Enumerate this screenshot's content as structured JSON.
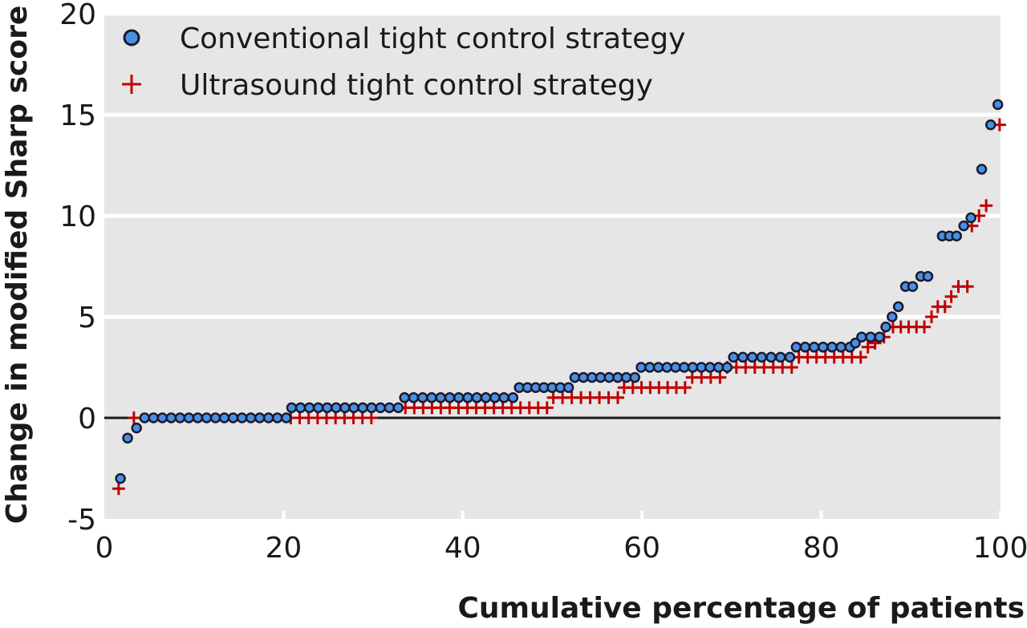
{
  "chart_data": {
    "type": "scatter",
    "title": "",
    "xlabel": "Cumulative percentage of patients",
    "ylabel": "Change in  modified Sharp score",
    "xlim": [
      0,
      100
    ],
    "ylim": [
      -5,
      20
    ],
    "x_ticks": [
      "0",
      "20",
      "40",
      "60",
      "80",
      "100"
    ],
    "y_ticks": [
      "-5",
      "0",
      "5",
      "10",
      "15",
      "20"
    ],
    "grid": true,
    "legend_position": "top-left",
    "colors": {
      "background": "#e6e6e6",
      "gridline": "#ffffff",
      "zero_line": "#1a1a1a",
      "conventional_fill": "#4a90e2",
      "conventional_edge": "#1a1a2e",
      "ultrasound": "#c00000"
    },
    "series": [
      {
        "name": "Conventional tight control strategy",
        "marker": "circle",
        "steps": [
          {
            "x0": 1.8,
            "x1": 1.8,
            "y": -3
          },
          {
            "x0": 2.6,
            "x1": 2.6,
            "y": -1
          },
          {
            "x0": 3.6,
            "x1": 3.6,
            "y": -0.5
          },
          {
            "x0": 4.5,
            "x1": 20.3,
            "y": 0
          },
          {
            "x0": 20.9,
            "x1": 32.8,
            "y": 0.5
          },
          {
            "x0": 33.5,
            "x1": 45.6,
            "y": 1
          },
          {
            "x0": 46.3,
            "x1": 51.8,
            "y": 1.5
          },
          {
            "x0": 52.5,
            "x1": 59.2,
            "y": 2
          },
          {
            "x0": 59.9,
            "x1": 69.5,
            "y": 2.5
          },
          {
            "x0": 70.2,
            "x1": 76.5,
            "y": 3
          },
          {
            "x0": 77.2,
            "x1": 83.2,
            "y": 3.5
          },
          {
            "x0": 83.8,
            "x1": 83.8,
            "y": 3.7
          },
          {
            "x0": 84.5,
            "x1": 86.5,
            "y": 4
          },
          {
            "x0": 87.2,
            "x1": 87.2,
            "y": 4.5
          },
          {
            "x0": 87.9,
            "x1": 87.9,
            "y": 5
          },
          {
            "x0": 88.6,
            "x1": 88.6,
            "y": 5.5
          },
          {
            "x0": 89.4,
            "x1": 90.2,
            "y": 6.5
          },
          {
            "x0": 91.1,
            "x1": 91.9,
            "y": 7
          },
          {
            "x0": 93.5,
            "x1": 95.1,
            "y": 9
          },
          {
            "x0": 95.9,
            "x1": 95.9,
            "y": 9.5
          },
          {
            "x0": 96.7,
            "x1": 96.7,
            "y": 9.9
          },
          {
            "x0": 97.9,
            "x1": 97.9,
            "y": 12.3
          },
          {
            "x0": 98.9,
            "x1": 98.9,
            "y": 14.5
          },
          {
            "x0": 99.7,
            "x1": 99.7,
            "y": 15.5
          }
        ]
      },
      {
        "name": "Ultrasound tight control strategy",
        "marker": "plus",
        "steps": [
          {
            "x0": 1.6,
            "x1": 1.6,
            "y": -3.5
          },
          {
            "x0": 3.3,
            "x1": 3.3,
            "y": 0
          },
          {
            "x0": 20.8,
            "x1": 29.8,
            "y": 0
          },
          {
            "x0": 33.6,
            "x1": 49.4,
            "y": 0.5
          },
          {
            "x0": 50.1,
            "x1": 57.3,
            "y": 1
          },
          {
            "x0": 58.0,
            "x1": 64.8,
            "y": 1.5
          },
          {
            "x0": 65.6,
            "x1": 68.7,
            "y": 2
          },
          {
            "x0": 69.5,
            "x1": 76.7,
            "y": 2.5
          },
          {
            "x0": 77.5,
            "x1": 84.4,
            "y": 3
          },
          {
            "x0": 85.2,
            "x1": 85.2,
            "y": 3.5
          },
          {
            "x0": 86.0,
            "x1": 86.0,
            "y": 3.7
          },
          {
            "x0": 87.0,
            "x1": 87.0,
            "y": 4
          },
          {
            "x0": 88.0,
            "x1": 91.5,
            "y": 4.5
          },
          {
            "x0": 92.3,
            "x1": 92.3,
            "y": 5
          },
          {
            "x0": 93.0,
            "x1": 93.8,
            "y": 5.5
          },
          {
            "x0": 94.5,
            "x1": 94.5,
            "y": 6
          },
          {
            "x0": 95.3,
            "x1": 96.3,
            "y": 6.5
          },
          {
            "x0": 96.8,
            "x1": 96.8,
            "y": 9.5
          },
          {
            "x0": 97.6,
            "x1": 97.6,
            "y": 10
          },
          {
            "x0": 98.4,
            "x1": 98.4,
            "y": 10.5
          },
          {
            "x0": 99.9,
            "x1": 99.9,
            "y": 14.5
          }
        ]
      }
    ]
  }
}
